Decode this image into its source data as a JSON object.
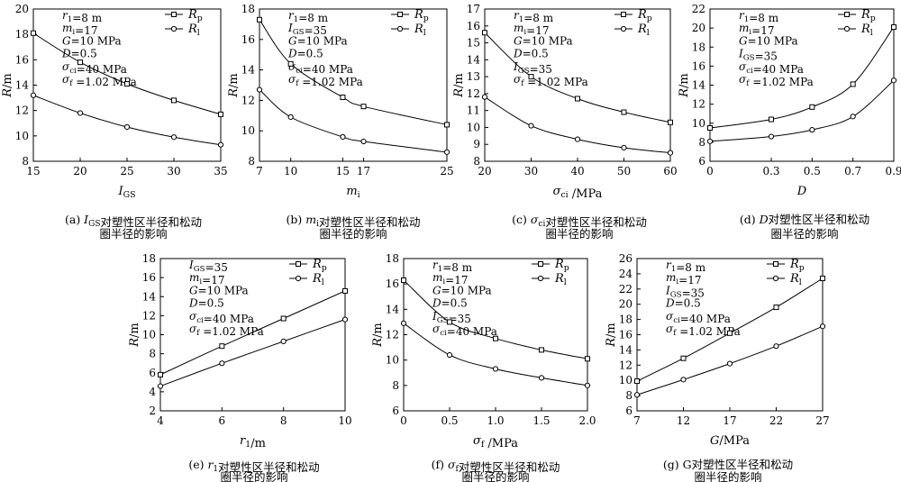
{
  "colors": {
    "line": "#000000",
    "marker_fill": "#ffffff",
    "background": "#ffffff"
  },
  "chart_data": [
    {
      "id": "a",
      "type": "line",
      "caption": [
        "(a) IGS对塑性区半径和松动",
        "圈半径的影响"
      ],
      "xlabel": "IGS",
      "ylabel": "R/m",
      "xlim": [
        15,
        35
      ],
      "ylim": [
        8,
        20
      ],
      "xticks": [
        15,
        20,
        25,
        30,
        35
      ],
      "yticks": [
        8,
        10,
        12,
        14,
        16,
        18,
        20
      ],
      "params": [
        "r1=8 m",
        "mi=17",
        "G=10 MPa",
        "D=0.5",
        "σci=40 MPa",
        "σf =1.02 MPa"
      ],
      "legend": [
        "Rp",
        "Rl"
      ],
      "series": [
        {
          "name": "Rp",
          "marker": "square",
          "x": [
            15,
            20,
            25,
            30,
            35
          ],
          "y": [
            18.1,
            15.8,
            14.1,
            12.8,
            11.7
          ]
        },
        {
          "name": "Rl",
          "marker": "circle",
          "x": [
            15,
            20,
            25,
            30,
            35
          ],
          "y": [
            13.2,
            11.8,
            10.7,
            9.9,
            9.3
          ]
        }
      ]
    },
    {
      "id": "b",
      "type": "line",
      "caption": [
        "(b) mi对塑性区半径和松动",
        "圈半径的影响"
      ],
      "xlabel": "mi",
      "ylabel": "R/m",
      "xlim": [
        7,
        25
      ],
      "ylim": [
        8,
        18
      ],
      "xticks": [
        7,
        10,
        15,
        17,
        25
      ],
      "yticks": [
        8,
        10,
        12,
        14,
        16,
        18
      ],
      "params": [
        "r1=8 m",
        "IGS=35",
        "G=10 MPa",
        "D=0.5",
        "σci=40 MPa",
        "σf =1.02 MPa"
      ],
      "legend": [
        "Rp",
        "Rl"
      ],
      "series": [
        {
          "name": "Rp",
          "marker": "square",
          "x": [
            7,
            10,
            15,
            17,
            25
          ],
          "y": [
            17.3,
            14.4,
            12.2,
            11.6,
            10.4
          ]
        },
        {
          "name": "Rl",
          "marker": "circle",
          "x": [
            7,
            10,
            15,
            17,
            25
          ],
          "y": [
            12.7,
            10.9,
            9.6,
            9.3,
            8.6
          ]
        }
      ]
    },
    {
      "id": "c",
      "type": "line",
      "caption": [
        "(c) σci对塑性区半径和松动",
        "圈半径的影响"
      ],
      "xlabel": "σci /MPa",
      "ylabel": "R/m",
      "xlim": [
        20,
        60
      ],
      "ylim": [
        8,
        17
      ],
      "xticks": [
        20,
        30,
        40,
        50,
        60
      ],
      "yticks": [
        8,
        9,
        10,
        11,
        12,
        13,
        14,
        15,
        16,
        17
      ],
      "params": [
        "r1=8 m",
        "mi=17",
        "G=10 MPa",
        "D=0.5",
        "IGS=35",
        "σf =1.02 MPa"
      ],
      "legend": [
        "Rp",
        "Rl"
      ],
      "series": [
        {
          "name": "Rp",
          "marker": "square",
          "x": [
            20,
            30,
            40,
            50,
            60
          ],
          "y": [
            15.6,
            13.0,
            11.7,
            10.9,
            10.3
          ]
        },
        {
          "name": "Rl",
          "marker": "circle",
          "x": [
            20,
            30,
            40,
            50,
            60
          ],
          "y": [
            11.8,
            10.1,
            9.3,
            8.8,
            8.5
          ]
        }
      ]
    },
    {
      "id": "d",
      "type": "line",
      "caption": [
        "(d) D对塑性区半径和松动",
        "圈半径的影响"
      ],
      "xlabel": "D",
      "ylabel": "R/m",
      "xlim": [
        0,
        0.9
      ],
      "ylim": [
        6,
        22
      ],
      "xticks": [
        0,
        0.3,
        0.5,
        0.7,
        0.9
      ],
      "yticks": [
        6,
        8,
        10,
        12,
        14,
        16,
        18,
        20,
        22
      ],
      "params": [
        "r1=8 m",
        "mi=17",
        "G=10 MPa",
        "IGS=35",
        "σci=40 MPa",
        "σf =1.02 MPa"
      ],
      "legend": [
        "Rp",
        "Rl"
      ],
      "series": [
        {
          "name": "Rp",
          "marker": "square",
          "x": [
            0,
            0.3,
            0.5,
            0.7,
            0.9
          ],
          "y": [
            9.5,
            10.4,
            11.7,
            14.1,
            20.1
          ]
        },
        {
          "name": "Rl",
          "marker": "circle",
          "x": [
            0,
            0.3,
            0.5,
            0.7,
            0.9
          ],
          "y": [
            8.1,
            8.6,
            9.3,
            10.7,
            14.5
          ]
        }
      ]
    },
    {
      "id": "e",
      "type": "line",
      "caption": [
        "(e) r1对塑性区半径和松动",
        "圈半径的影响"
      ],
      "xlabel": "r1/m",
      "ylabel": "R/m",
      "xlim": [
        4,
        10
      ],
      "ylim": [
        2,
        18
      ],
      "xticks": [
        4,
        6,
        8,
        10
      ],
      "yticks": [
        2,
        4,
        6,
        8,
        10,
        12,
        14,
        16,
        18
      ],
      "params": [
        "IGS=35",
        "mi=17",
        "G=10 MPa",
        "D=0.5",
        "σci=40 MPa",
        "σf =1.02 MPa"
      ],
      "legend": [
        "Rp",
        "Rl"
      ],
      "series": [
        {
          "name": "Rp",
          "marker": "square",
          "x": [
            4,
            6,
            8,
            10
          ],
          "y": [
            5.8,
            8.8,
            11.7,
            14.6
          ]
        },
        {
          "name": "Rl",
          "marker": "circle",
          "x": [
            4,
            6,
            8,
            10
          ],
          "y": [
            4.6,
            7.0,
            9.3,
            11.6
          ]
        }
      ]
    },
    {
      "id": "f",
      "type": "line",
      "caption": [
        "(f) σf对塑性区半径和松动",
        "圈半径的影响"
      ],
      "xlabel": "σf /MPa",
      "ylabel": "R/m",
      "xlim": [
        0,
        2.0
      ],
      "ylim": [
        6,
        18
      ],
      "xticks": [
        0,
        0.5,
        1.0,
        1.5,
        2.0
      ],
      "yticks": [
        6,
        8,
        10,
        12,
        14,
        16,
        18
      ],
      "params": [
        "r1=8 m",
        "mi=17",
        "G=10 MPa",
        "D=0.5",
        "IGS=35",
        "σci=40 MPa"
      ],
      "legend": [
        "Rp",
        "Rl"
      ],
      "series": [
        {
          "name": "Rp",
          "marker": "square",
          "x": [
            0,
            0.5,
            1.0,
            1.5,
            2.0
          ],
          "y": [
            16.3,
            13.0,
            11.7,
            10.8,
            10.1
          ]
        },
        {
          "name": "Rl",
          "marker": "circle",
          "x": [
            0,
            0.5,
            1.0,
            1.5,
            2.0
          ],
          "y": [
            12.9,
            10.4,
            9.3,
            8.6,
            8.0
          ]
        }
      ]
    },
    {
      "id": "g",
      "type": "line",
      "caption": [
        "(g) G对塑性区半径和松动",
        "圈半径的影响"
      ],
      "xlabel": "G/MPa",
      "ylabel": "R/m",
      "xlim": [
        7,
        27
      ],
      "ylim": [
        6,
        26
      ],
      "xticks": [
        7,
        12,
        17,
        22,
        27
      ],
      "yticks": [
        6,
        8,
        10,
        12,
        14,
        16,
        18,
        20,
        22,
        24,
        26
      ],
      "params": [
        "r1=8 m",
        "mi=17",
        "IGS=35",
        "D=0.5",
        "σci=40 MPa",
        "σf =1.02 MPa"
      ],
      "legend": [
        "Rp",
        "Rl"
      ],
      "series": [
        {
          "name": "Rp",
          "marker": "square",
          "x": [
            7,
            12,
            17,
            22,
            27
          ],
          "y": [
            9.9,
            12.9,
            16.2,
            19.6,
            23.4
          ]
        },
        {
          "name": "Rl",
          "marker": "circle",
          "x": [
            7,
            12,
            17,
            22,
            27
          ],
          "y": [
            8.1,
            10.1,
            12.2,
            14.5,
            17.1
          ]
        }
      ]
    }
  ]
}
